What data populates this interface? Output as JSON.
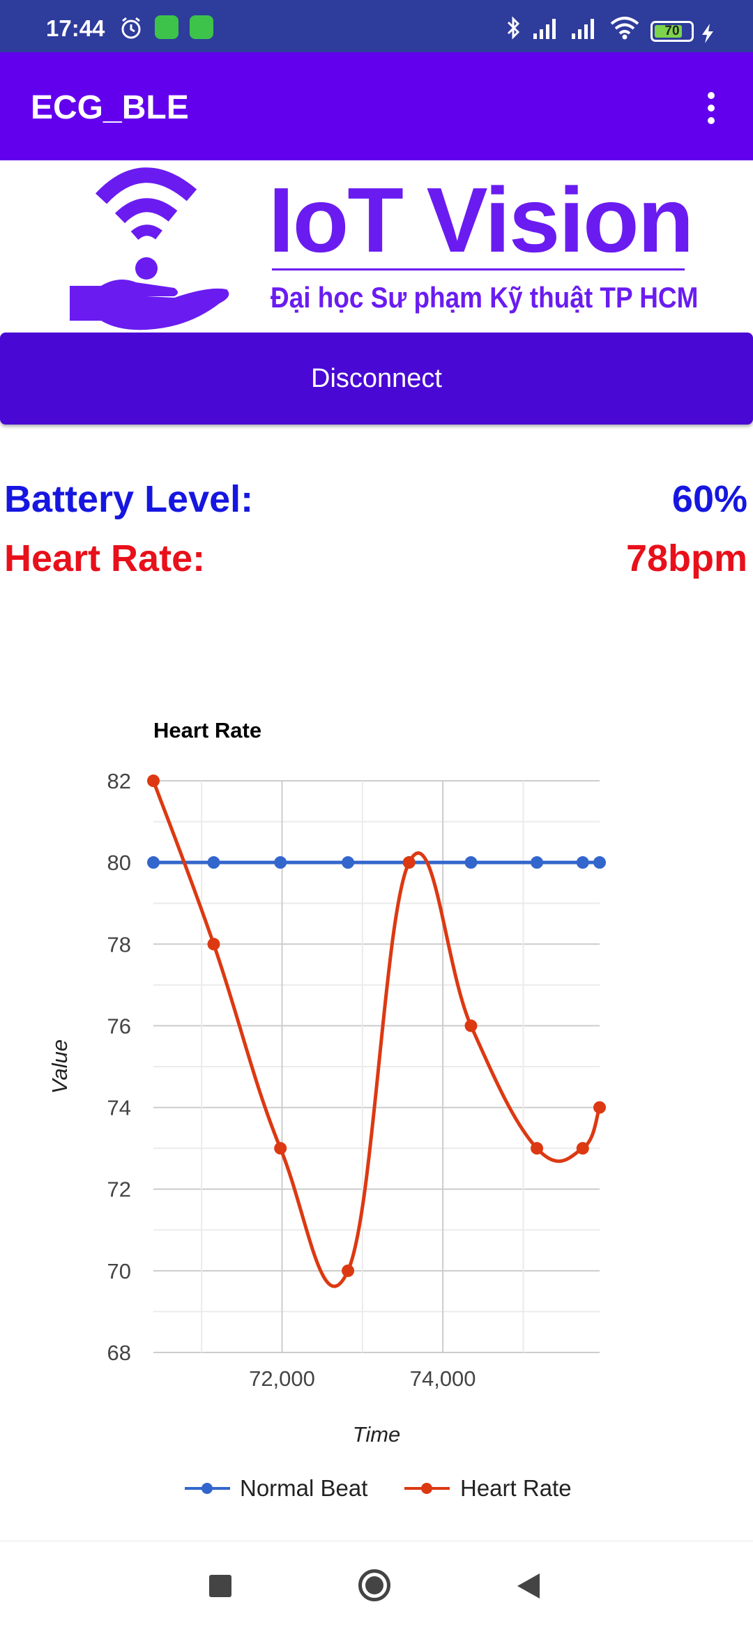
{
  "status_bar": {
    "time": "17:44",
    "battery_percent": "70",
    "icons": [
      "alarm-icon",
      "app-notification-icon",
      "app-notification-icon",
      "bluetooth-icon",
      "signal-icon",
      "signal-icon",
      "wifi-icon",
      "battery-icon",
      "charging-icon"
    ]
  },
  "app_bar": {
    "title": "ECG_BLE",
    "overflow_icon": "more-vert-icon"
  },
  "logo": {
    "title": "IoT Vision",
    "subtitle": "Đại học Sư phạm Kỹ thuật TP HCM",
    "color": "#6a1cf0"
  },
  "controls": {
    "disconnect_label": "Disconnect"
  },
  "readouts": {
    "battery_label": "Battery Level:",
    "battery_value": "60%",
    "heart_rate_label": "Heart Rate:",
    "heart_rate_value": "78bpm"
  },
  "colors": {
    "app_bar": "#6200ee",
    "button": "#4a08d4",
    "battery_text": "#1616e0",
    "heart_rate_text": "#e8101a",
    "normal_beat_series": "#3366cc",
    "heart_rate_series": "#dc3912"
  },
  "chart_data": {
    "type": "line",
    "title": "Heart Rate",
    "xlabel": "Time",
    "ylabel": "Value",
    "ylim": [
      68,
      82
    ],
    "xlim": [
      70400,
      75950
    ],
    "y_ticks": [
      "82",
      "80",
      "78",
      "76",
      "74",
      "72",
      "70",
      "68"
    ],
    "x_ticks": [
      "72,000",
      "74,000"
    ],
    "x_tick_values": [
      72000,
      74000
    ],
    "grid": true,
    "legend": "bottom",
    "series": [
      {
        "name": "Normal Beat",
        "color": "#3366cc",
        "x": [
          70400,
          71150,
          71980,
          72820,
          73580,
          74350,
          75170,
          75740,
          75950
        ],
        "y": [
          80,
          80,
          80,
          80,
          80,
          80,
          80,
          80,
          80
        ]
      },
      {
        "name": "Heart Rate",
        "color": "#dc3912",
        "x": [
          70400,
          71150,
          71980,
          72820,
          73580,
          74350,
          75170,
          75740,
          75950
        ],
        "y": [
          82,
          78,
          73,
          70,
          80,
          76,
          73,
          73,
          74
        ]
      }
    ]
  },
  "nav_bar": {
    "icons": [
      "recents-icon",
      "home-icon",
      "back-icon"
    ]
  }
}
